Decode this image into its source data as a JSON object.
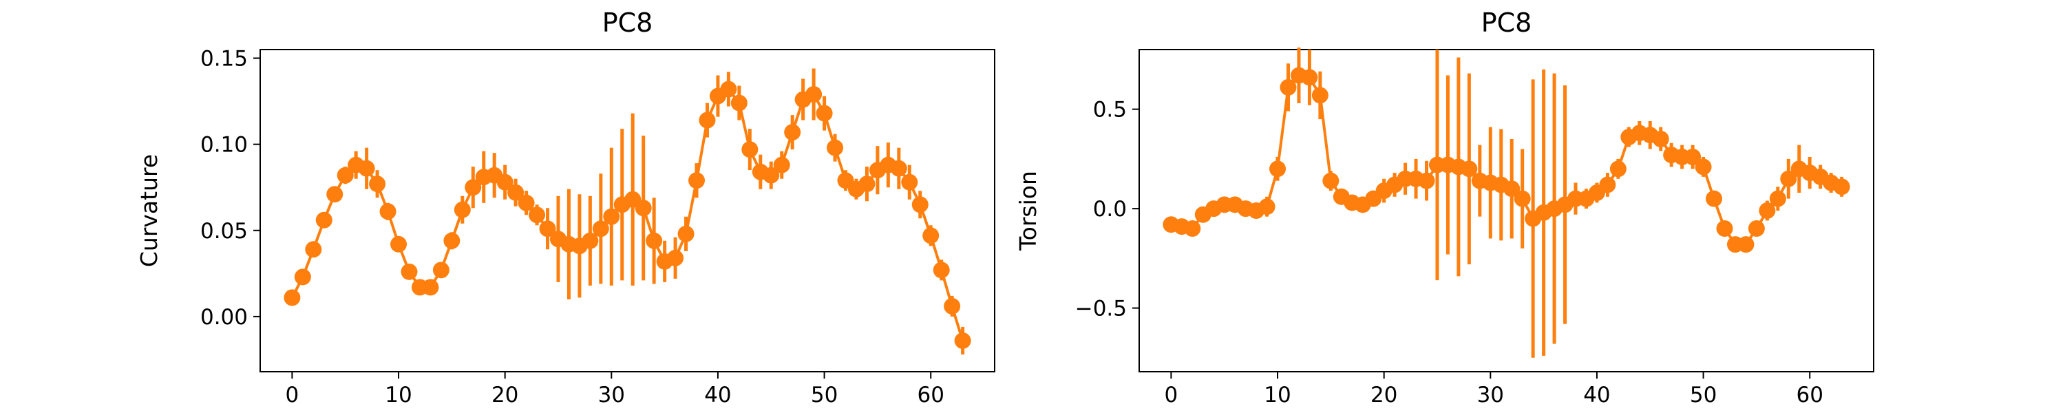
{
  "chart_data": [
    {
      "type": "line",
      "title": "PC8",
      "xlabel": "",
      "ylabel": "Curvature",
      "xlim": [
        -3,
        66
      ],
      "ylim": [
        -0.032,
        0.155
      ],
      "xticks": [
        0,
        10,
        20,
        30,
        40,
        50,
        60
      ],
      "yticks": [
        0.0,
        0.05,
        0.1,
        0.15
      ],
      "ytick_labels": [
        "0.00",
        "0.05",
        "0.10",
        "0.15"
      ],
      "color": "#ff7f0e",
      "grid": false,
      "series": [
        {
          "x": [
            0,
            1,
            2,
            3,
            4,
            5,
            6,
            7,
            8,
            9,
            10,
            11,
            12,
            13,
            14,
            15,
            16,
            17,
            18,
            19,
            20,
            21,
            22,
            23,
            24,
            25,
            26,
            27,
            28,
            29,
            30,
            31,
            32,
            33,
            34,
            35,
            36,
            37,
            38,
            39,
            40,
            41,
            42,
            43,
            44,
            45,
            46,
            47,
            48,
            49,
            50,
            51,
            52,
            53,
            54,
            55,
            56,
            57,
            58,
            59,
            60,
            61,
            62,
            63
          ],
          "y": [
            0.011,
            0.023,
            0.039,
            0.056,
            0.071,
            0.082,
            0.088,
            0.086,
            0.077,
            0.061,
            0.042,
            0.026,
            0.017,
            0.017,
            0.027,
            0.044,
            0.062,
            0.075,
            0.081,
            0.082,
            0.078,
            0.072,
            0.066,
            0.059,
            0.051,
            0.045,
            0.042,
            0.041,
            0.044,
            0.051,
            0.058,
            0.065,
            0.068,
            0.063,
            0.044,
            0.032,
            0.034,
            0.048,
            0.079,
            0.114,
            0.128,
            0.132,
            0.124,
            0.097,
            0.084,
            0.082,
            0.088,
            0.107,
            0.126,
            0.129,
            0.118,
            0.098,
            0.079,
            0.074,
            0.077,
            0.085,
            0.088,
            0.086,
            0.078,
            0.065,
            0.047,
            0.027,
            0.006,
            -0.014
          ],
          "err": [
            0.002,
            0.002,
            0.002,
            0.003,
            0.004,
            0.005,
            0.008,
            0.012,
            0.008,
            0.005,
            0.003,
            0.003,
            0.002,
            0.002,
            0.003,
            0.005,
            0.008,
            0.012,
            0.015,
            0.013,
            0.01,
            0.008,
            0.007,
            0.006,
            0.012,
            0.025,
            0.032,
            0.03,
            0.026,
            0.032,
            0.04,
            0.044,
            0.05,
            0.042,
            0.025,
            0.012,
            0.012,
            0.01,
            0.01,
            0.01,
            0.012,
            0.01,
            0.01,
            0.012,
            0.01,
            0.008,
            0.008,
            0.01,
            0.012,
            0.015,
            0.01,
            0.008,
            0.006,
            0.006,
            0.01,
            0.014,
            0.013,
            0.012,
            0.01,
            0.008,
            0.006,
            0.006,
            0.006,
            0.008
          ]
        }
      ]
    },
    {
      "type": "line",
      "title": "PC8",
      "xlabel": "",
      "ylabel": "Torsion",
      "xlim": [
        -3,
        66
      ],
      "ylim": [
        -0.82,
        0.8
      ],
      "xticks": [
        0,
        10,
        20,
        30,
        40,
        50,
        60
      ],
      "yticks": [
        -0.5,
        0.0,
        0.5
      ],
      "ytick_labels": [
        "−0.5",
        "0.0",
        "0.5"
      ],
      "color": "#ff7f0e",
      "grid": false,
      "series": [
        {
          "x": [
            0,
            1,
            2,
            3,
            4,
            5,
            6,
            7,
            8,
            9,
            10,
            11,
            12,
            13,
            14,
            15,
            16,
            17,
            18,
            19,
            20,
            21,
            22,
            23,
            24,
            25,
            26,
            27,
            28,
            29,
            30,
            31,
            32,
            33,
            34,
            35,
            36,
            37,
            38,
            39,
            40,
            41,
            42,
            43,
            44,
            45,
            46,
            47,
            48,
            49,
            50,
            51,
            52,
            53,
            54,
            55,
            56,
            57,
            58,
            59,
            60,
            61,
            62,
            63
          ],
          "y": [
            -0.08,
            -0.09,
            -0.1,
            -0.03,
            0.0,
            0.02,
            0.02,
            0.0,
            -0.01,
            0.01,
            0.2,
            0.61,
            0.67,
            0.66,
            0.57,
            0.14,
            0.06,
            0.03,
            0.02,
            0.05,
            0.09,
            0.12,
            0.15,
            0.15,
            0.14,
            0.22,
            0.22,
            0.21,
            0.2,
            0.14,
            0.13,
            0.12,
            0.1,
            0.05,
            -0.05,
            -0.02,
            0.0,
            0.02,
            0.05,
            0.05,
            0.08,
            0.12,
            0.2,
            0.36,
            0.38,
            0.37,
            0.35,
            0.27,
            0.26,
            0.26,
            0.21,
            0.05,
            -0.1,
            -0.18,
            -0.18,
            -0.1,
            -0.01,
            0.05,
            0.15,
            0.2,
            0.18,
            0.16,
            0.13,
            0.11
          ],
          "err": [
            0.02,
            0.02,
            0.03,
            0.03,
            0.03,
            0.03,
            0.03,
            0.03,
            0.03,
            0.05,
            0.06,
            0.12,
            0.14,
            0.14,
            0.12,
            0.05,
            0.04,
            0.03,
            0.03,
            0.04,
            0.06,
            0.06,
            0.08,
            0.1,
            0.1,
            0.58,
            0.45,
            0.55,
            0.48,
            0.18,
            0.28,
            0.28,
            0.25,
            0.25,
            0.7,
            0.72,
            0.68,
            0.6,
            0.08,
            0.05,
            0.05,
            0.06,
            0.05,
            0.05,
            0.06,
            0.07,
            0.06,
            0.06,
            0.06,
            0.06,
            0.05,
            0.04,
            0.04,
            0.04,
            0.04,
            0.04,
            0.05,
            0.06,
            0.1,
            0.12,
            0.08,
            0.06,
            0.05,
            0.05
          ]
        }
      ]
    }
  ]
}
